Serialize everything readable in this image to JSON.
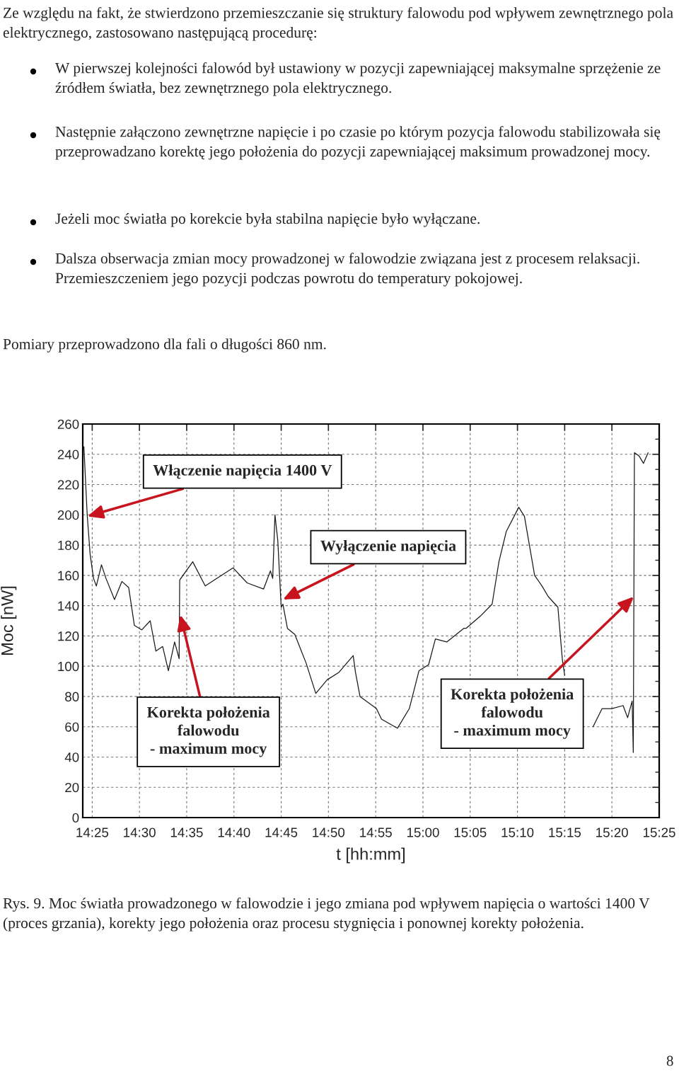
{
  "chart_data": {
    "type": "line",
    "xlabel": "t [hh:mm]",
    "ylabel": "Moc [nW]",
    "x": [
      14.402,
      14.408,
      14.413,
      14.419,
      14.424,
      14.433,
      14.441,
      14.456,
      14.469,
      14.481,
      14.491,
      14.504,
      14.519,
      14.529,
      14.541,
      14.551,
      14.562,
      14.57,
      14.571,
      14.594,
      14.616,
      14.665,
      14.69,
      14.719,
      14.731,
      14.735,
      14.739,
      14.744,
      14.75,
      14.753,
      14.761,
      14.774,
      14.794,
      14.811,
      14.831,
      14.852,
      14.877,
      14.881,
      14.889,
      14.918,
      14.927,
      14.955,
      14.976,
      14.993,
      15.01,
      15.022,
      15.042,
      15.072,
      15.076,
      15.101,
      15.122,
      15.134,
      15.147,
      15.169,
      15.179,
      15.197,
      15.21,
      15.221,
      15.238,
      15.246,
      15.25,
      15.275,
      15.3,
      15.316,
      15.333,
      15.353,
      15.361,
      15.369,
      15.371,
      15.373,
      15.381,
      15.389,
      15.397
    ],
    "series": [
      {
        "color": "#1a1a1a",
        "values": [
          245,
          199,
          174,
          158,
          153,
          167,
          158,
          144,
          156,
          152,
          127,
          124,
          130,
          110,
          113,
          97,
          116,
          105,
          157,
          169,
          153,
          165,
          155,
          151,
          163,
          158,
          200,
          183,
          139,
          141,
          125,
          121,
          102,
          82,
          91,
          96,
          107,
          96,
          80,
          72,
          65,
          59,
          72,
          97,
          101,
          118,
          116,
          125,
          125,
          133,
          141,
          169,
          189,
          205,
          199,
          160,
          153,
          146,
          139,
          104,
          94,
          null,
          60,
          72,
          72,
          74,
          66,
          77,
          43,
          241,
          239,
          234,
          241
        ]
      }
    ],
    "xlim": [
      14.4,
      15.4167
    ],
    "xticks": [
      {
        "value": 14.4167,
        "label": "14:25"
      },
      {
        "value": 14.5,
        "label": "14:30"
      },
      {
        "value": 14.5833,
        "label": "14:35"
      },
      {
        "value": 14.6667,
        "label": "14:40"
      },
      {
        "value": 14.75,
        "label": "14:45"
      },
      {
        "value": 14.8333,
        "label": "14:50"
      },
      {
        "value": 14.9167,
        "label": "14:55"
      },
      {
        "value": 15.0,
        "label": "15:00"
      },
      {
        "value": 15.0833,
        "label": "15:05"
      },
      {
        "value": 15.1667,
        "label": "15:10"
      },
      {
        "value": 15.25,
        "label": "15:15"
      },
      {
        "value": 15.3333,
        "label": "15:20"
      },
      {
        "value": 15.4167,
        "label": "15:25"
      }
    ],
    "ylim": [
      0,
      260
    ],
    "yticks": [
      0,
      20,
      40,
      60,
      80,
      100,
      120,
      140,
      160,
      180,
      200,
      220,
      240,
      260
    ],
    "grid": true,
    "marker": "none",
    "line_style": "solid",
    "annotations": [
      "Ze względu na fakt, że stwierdzono przemieszczanie się struktury falowodu pod wpływem zewnętrznego pola elektrycznego, zastosowano następującą procedurę:",
      "W pierwszej kolejności falowód był ustawiony w pozycji zapewniającej maksymalne sprzężenie ze źródłem światła, bez zewnętrznego pola elektrycznego.",
      "Następnie załączono zewnętrzne napięcie i po czasie po którym pozycja falowodu stabilizowała się przeprowadzano korektę jego położenia do pozycji zapewniającej maksimum prowadzonej mocy.",
      "Jeżeli moc światła po korekcie była stabilna napięcie było wyłączane.",
      "Dalsza obserwacja zmian mocy prowadzonej w falowodzie związana jest z procesem relaksacji. Przemieszczeniem jego pozycji podczas powrotu do temperatury pokojowej.",
      "Pomiary przeprowadzono dla fali o długości 860 nm.",
      {
        "text": "Włączenie napięcia 1400 V",
        "x": 14.408,
        "y": 199
      },
      {
        "text": "Wyłączenie napięcia",
        "x": 14.753,
        "y": 144
      },
      {
        "text": "Korekta położenia\nfalowodu\n- maximum mocy",
        "x": 14.572,
        "y": 134
      },
      {
        "text": "Korekta położenia\nfalowodu\n- maximum mocy",
        "x": 15.372,
        "y": 146
      },
      "Rys. 9. Moc światła prowadzonego w falowodzie i jego zmiana pod wpływem napięcia o wartości 1400 V (proces grzania), korekty jego położenia oraz procesu stygnięcia i ponownej korekty położenia.",
      "8"
    ]
  }
}
